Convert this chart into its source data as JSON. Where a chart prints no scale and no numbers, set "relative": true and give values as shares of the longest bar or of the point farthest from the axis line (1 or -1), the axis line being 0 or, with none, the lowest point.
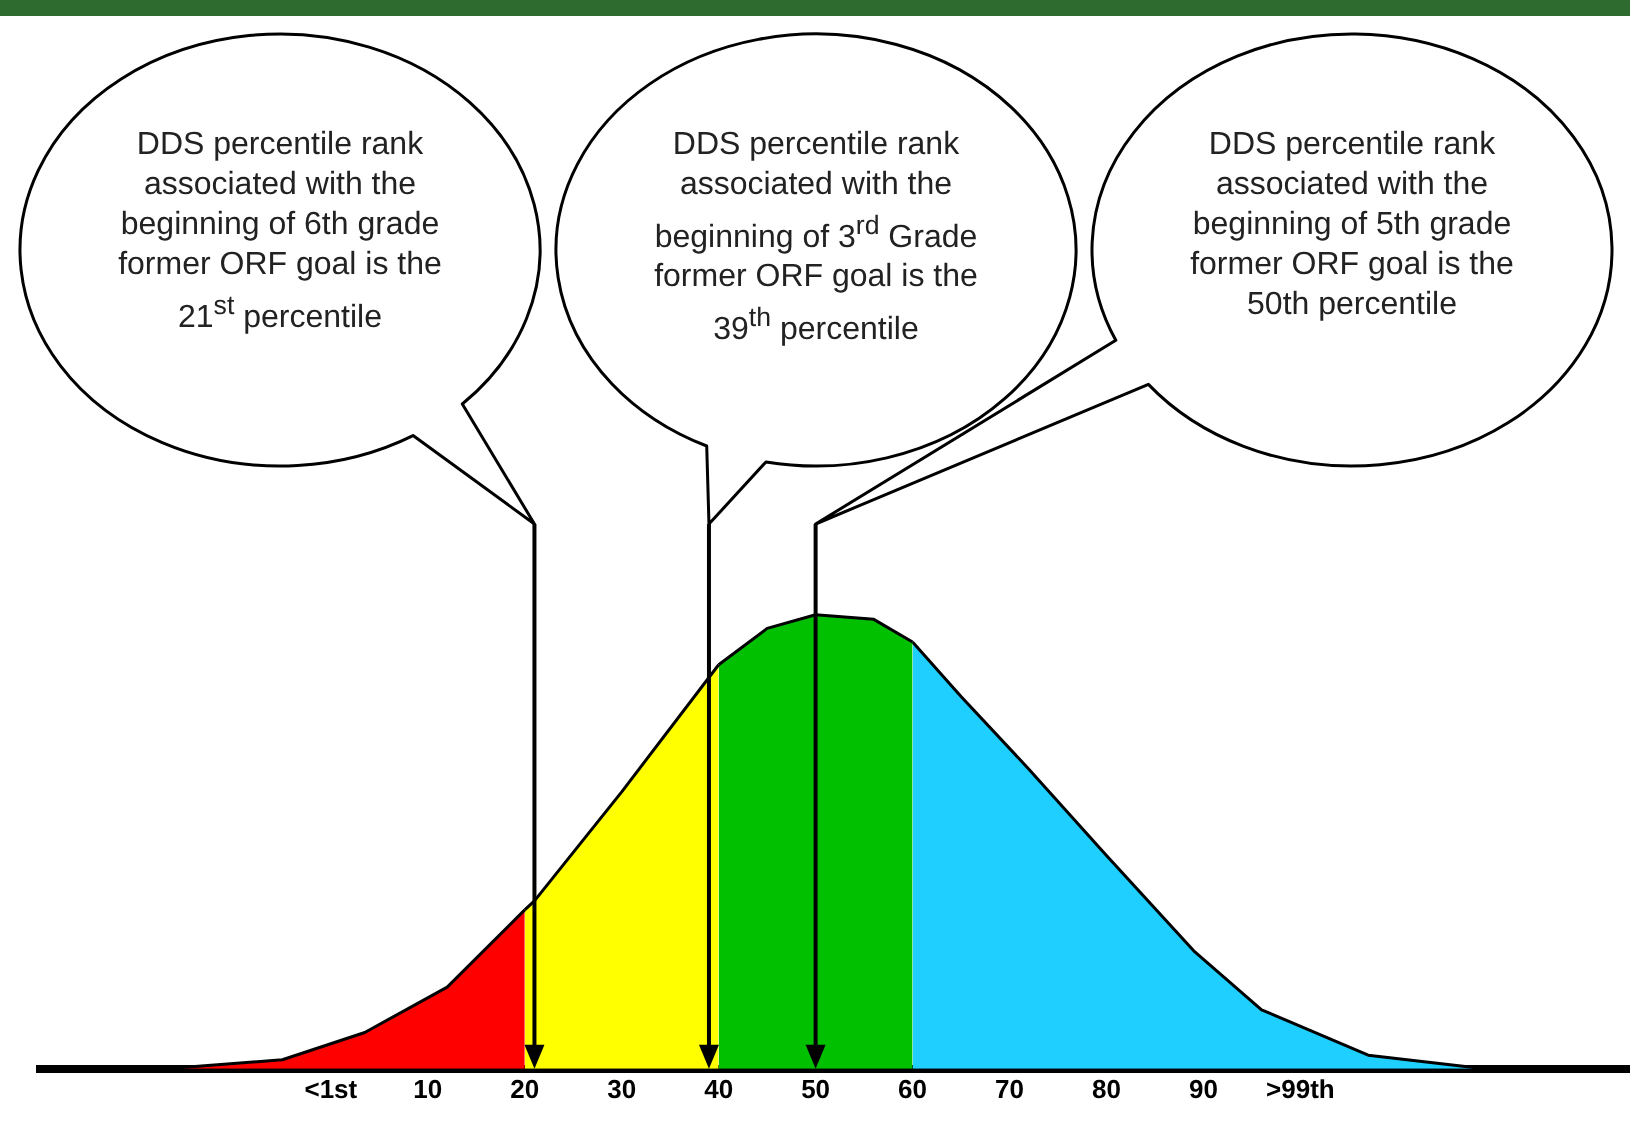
{
  "chart_data": {
    "type": "area",
    "relative": true,
    "xlim": [
      -30,
      134
    ],
    "xticks": [
      {
        "value": 0,
        "label": "<1st"
      },
      10,
      20,
      30,
      40,
      50,
      60,
      70,
      80,
      90,
      {
        "value": 100,
        "label": ">99th"
      }
    ],
    "series": [
      {
        "color": "#ff0000",
        "x": [
          -17,
          -5,
          3.5,
          12,
          20
        ],
        "values": [
          0,
          0.02,
          0.08,
          0.18,
          0.35
        ]
      },
      {
        "color": "#ffff00",
        "x": [
          20,
          21,
          30,
          40
        ],
        "values": [
          0.35,
          0.37,
          0.61,
          0.89
        ]
      },
      {
        "color": "#00c000",
        "x": [
          40,
          45,
          50,
          56,
          60
        ],
        "values": [
          0.89,
          0.97,
          1,
          0.99,
          0.94
        ]
      },
      {
        "color": "#1ecfff",
        "x": [
          60,
          65,
          72,
          80,
          89,
          96,
          107,
          119
        ],
        "values": [
          0.94,
          0.82,
          0.66,
          0.47,
          0.26,
          0.13,
          0.03,
          0
        ]
      }
    ],
    "ref_lines": [
      {
        "axis": "x",
        "value": 21,
        "color": "#000000"
      },
      {
        "axis": "x",
        "value": 50,
        "color": "#000000"
      },
      {
        "axis": "x",
        "value": 39,
        "color": "#000000"
      }
    ],
    "annotations": [
      "DDS percentile rank associated with the beginning of 6th grade former ORF goal is the 21$^{st}$ percentile",
      "DDS percentile rank associated with the beginning of 5th grade former ORF goal is the 50th percentile",
      "DDS percentile rank associated with the beginning of 3$^{rd}$ Grade former ORF goal is the 39$^{th}$ percentile"
    ]
  }
}
